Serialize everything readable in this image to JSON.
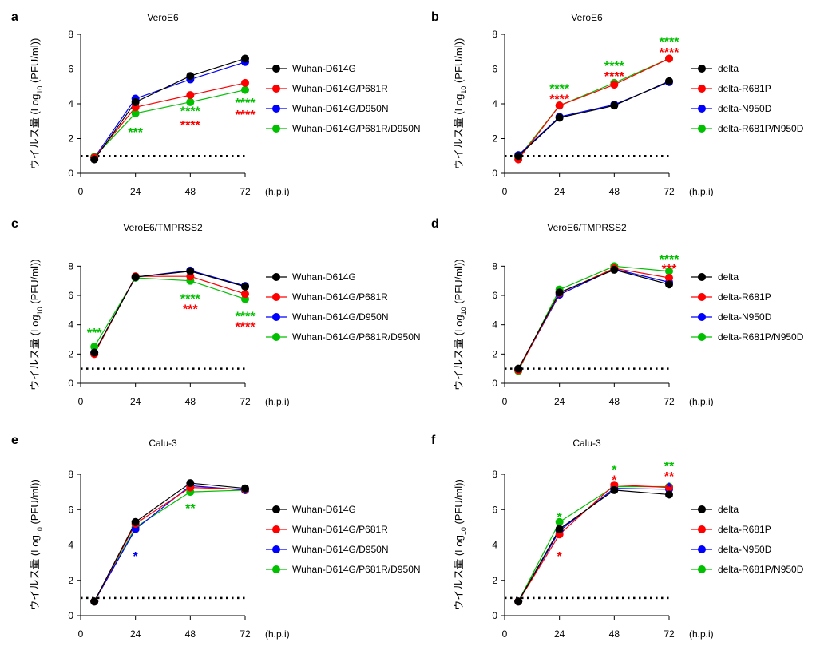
{
  "colors": {
    "black": "#000000",
    "red": "#ff0000",
    "blue": "#0000ff",
    "green": "#00c000"
  },
  "ylabel": "ウイルス量",
  "ylabel_unit_pre": "(Log",
  "ylabel_unit_sub": "10",
  "ylabel_unit_post": " (PFU/ml))",
  "chart_data": [
    {
      "panel": "a",
      "type": "line",
      "title": "VeroE6",
      "x": [
        6,
        24,
        48,
        72
      ],
      "xticks": [
        0,
        24,
        48,
        72
      ],
      "xunit": "(h.p.i)",
      "ylim": [
        0,
        8
      ],
      "yticks": [
        0,
        2,
        4,
        6,
        8
      ],
      "detection_limit": 1,
      "series": [
        {
          "name": "Wuhan-D614G",
          "color": "black",
          "values": [
            0.8,
            4.1,
            5.6,
            6.6
          ]
        },
        {
          "name": "Wuhan-D614G/P681R",
          "color": "red",
          "values": [
            0.9,
            3.8,
            4.5,
            5.2
          ]
        },
        {
          "name": "Wuhan-D614G/D950N",
          "color": "blue",
          "values": [
            0.9,
            4.3,
            5.4,
            6.4
          ]
        },
        {
          "name": "Wuhan-D614G/P681R/D950N",
          "color": "green",
          "values": [
            0.95,
            3.45,
            4.1,
            4.8
          ]
        }
      ],
      "annotations": [
        {
          "x": 24,
          "y": 2.4,
          "text": "***",
          "color": "green"
        },
        {
          "x": 48,
          "y": 3.6,
          "text": "****",
          "color": "green"
        },
        {
          "x": 48,
          "y": 2.8,
          "text": "****",
          "color": "red"
        },
        {
          "x": 72,
          "y": 4.1,
          "text": "****",
          "color": "green"
        },
        {
          "x": 72,
          "y": 3.4,
          "text": "****",
          "color": "red"
        }
      ]
    },
    {
      "panel": "b",
      "type": "line",
      "title": "VeroE6",
      "x": [
        6,
        24,
        48,
        72
      ],
      "xticks": [
        0,
        24,
        48,
        72
      ],
      "xunit": "(h.p.i)",
      "ylim": [
        0,
        8
      ],
      "yticks": [
        0,
        2,
        4,
        6,
        8
      ],
      "detection_limit": 1,
      "series": [
        {
          "name": "delta",
          "color": "black",
          "values": [
            1.0,
            3.2,
            3.9,
            5.3
          ]
        },
        {
          "name": "delta-R681P",
          "color": "red",
          "values": [
            0.8,
            3.9,
            5.1,
            6.6
          ]
        },
        {
          "name": "delta-N950D",
          "color": "blue",
          "values": [
            1.05,
            3.25,
            3.95,
            5.25
          ]
        },
        {
          "name": "delta-R681P/N950D",
          "color": "green",
          "values": [
            0.9,
            3.9,
            5.2,
            6.6
          ]
        }
      ],
      "annotations": [
        {
          "x": 24,
          "y": 4.9,
          "text": "****",
          "color": "green"
        },
        {
          "x": 24,
          "y": 4.3,
          "text": "****",
          "color": "red"
        },
        {
          "x": 48,
          "y": 6.2,
          "text": "****",
          "color": "green"
        },
        {
          "x": 48,
          "y": 5.6,
          "text": "****",
          "color": "red"
        },
        {
          "x": 72,
          "y": 7.6,
          "text": "****",
          "color": "green"
        },
        {
          "x": 72,
          "y": 7.0,
          "text": "****",
          "color": "red"
        }
      ]
    },
    {
      "panel": "c",
      "type": "line",
      "title": "VeroE6/TMPRSS2",
      "x": [
        6,
        24,
        48,
        72
      ],
      "xticks": [
        0,
        24,
        48,
        72
      ],
      "xunit": "(h.p.i)",
      "ylim": [
        0,
        9
      ],
      "yticks": [
        0,
        2,
        4,
        6,
        8
      ],
      "detection_limit": 1,
      "series": [
        {
          "name": "Wuhan-D614G",
          "color": "black",
          "values": [
            2.1,
            7.25,
            7.65,
            6.6
          ]
        },
        {
          "name": "Wuhan-D614G/P681R",
          "color": "red",
          "values": [
            2.0,
            7.3,
            7.3,
            6.1
          ]
        },
        {
          "name": "Wuhan-D614G/D950N",
          "color": "blue",
          "values": [
            2.1,
            7.25,
            7.7,
            6.65
          ]
        },
        {
          "name": "Wuhan-D614G/P681R/D950N",
          "color": "green",
          "values": [
            2.5,
            7.2,
            7.0,
            5.75
          ]
        }
      ],
      "annotations": [
        {
          "x": 6,
          "y": 3.5,
          "text": "***",
          "color": "green"
        },
        {
          "x": 48,
          "y": 5.8,
          "text": "****",
          "color": "green"
        },
        {
          "x": 48,
          "y": 5.1,
          "text": "***",
          "color": "red"
        },
        {
          "x": 72,
          "y": 4.6,
          "text": "****",
          "color": "green"
        },
        {
          "x": 72,
          "y": 3.9,
          "text": "****",
          "color": "red"
        }
      ]
    },
    {
      "panel": "d",
      "type": "line",
      "title": "VeroE6/TMPRSS2",
      "x": [
        6,
        24,
        48,
        72
      ],
      "xticks": [
        0,
        24,
        48,
        72
      ],
      "xunit": "(h.p.i)",
      "ylim": [
        0,
        9
      ],
      "yticks": [
        0,
        2,
        4,
        6,
        8
      ],
      "detection_limit": 1,
      "series": [
        {
          "name": "delta",
          "color": "black",
          "values": [
            1.0,
            6.2,
            7.75,
            6.75
          ]
        },
        {
          "name": "delta-R681P",
          "color": "red",
          "values": [
            0.9,
            6.15,
            7.85,
            7.2
          ]
        },
        {
          "name": "delta-N950D",
          "color": "blue",
          "values": [
            0.95,
            6.05,
            7.8,
            6.9
          ]
        },
        {
          "name": "delta-R681P/N950D",
          "color": "green",
          "values": [
            0.85,
            6.4,
            8.0,
            7.65
          ]
        }
      ],
      "annotations": [
        {
          "x": 72,
          "y": 8.5,
          "text": "****",
          "color": "green"
        },
        {
          "x": 72,
          "y": 7.85,
          "text": "***",
          "color": "red"
        }
      ]
    },
    {
      "panel": "e",
      "type": "line",
      "title": "Calu-3",
      "x": [
        6,
        24,
        48,
        72
      ],
      "xticks": [
        0,
        24,
        48,
        72
      ],
      "xunit": "(h.p.i)",
      "ylim": [
        0,
        8
      ],
      "yticks": [
        0,
        2,
        4,
        6,
        8
      ],
      "detection_limit": 1,
      "series": [
        {
          "name": "Wuhan-D614G",
          "color": "black",
          "values": [
            0.8,
            5.3,
            7.5,
            7.2
          ]
        },
        {
          "name": "Wuhan-D614G/P681R",
          "color": "red",
          "values": [
            0.8,
            5.2,
            7.25,
            7.15
          ]
        },
        {
          "name": "Wuhan-D614G/D950N",
          "color": "blue",
          "values": [
            0.8,
            4.9,
            7.35,
            7.1
          ]
        },
        {
          "name": "Wuhan-D614G/P681R/D950N",
          "color": "green",
          "values": [
            0.8,
            5.0,
            7.0,
            7.1
          ]
        }
      ],
      "annotations": [
        {
          "x": 24,
          "y": 3.4,
          "text": "*",
          "color": "blue"
        },
        {
          "x": 48,
          "y": 6.1,
          "text": "**",
          "color": "green"
        }
      ]
    },
    {
      "panel": "f",
      "type": "line",
      "title": "Calu-3",
      "x": [
        6,
        24,
        48,
        72
      ],
      "xticks": [
        0,
        24,
        48,
        72
      ],
      "xunit": "(h.p.i)",
      "ylim": [
        0,
        8
      ],
      "yticks": [
        0,
        2,
        4,
        6,
        8
      ],
      "detection_limit": 1,
      "series": [
        {
          "name": "delta",
          "color": "black",
          "values": [
            0.8,
            4.9,
            7.1,
            6.85
          ]
        },
        {
          "name": "delta-R681P",
          "color": "red",
          "values": [
            0.8,
            4.6,
            7.4,
            7.25
          ]
        },
        {
          "name": "delta-N950D",
          "color": "blue",
          "values": [
            0.8,
            4.8,
            7.2,
            7.15
          ]
        },
        {
          "name": "delta-R681P/N950D",
          "color": "green",
          "values": [
            0.8,
            5.3,
            7.3,
            7.3
          ]
        }
      ],
      "annotations": [
        {
          "x": 24,
          "y": 5.6,
          "text": "*",
          "color": "green"
        },
        {
          "x": 24,
          "y": 3.4,
          "text": "*",
          "color": "red"
        },
        {
          "x": 48,
          "y": 8.3,
          "text": "*",
          "color": "green"
        },
        {
          "x": 48,
          "y": 7.7,
          "text": "*",
          "color": "red"
        },
        {
          "x": 72,
          "y": 8.5,
          "text": "**",
          "color": "green"
        },
        {
          "x": 72,
          "y": 7.9,
          "text": "**",
          "color": "red"
        },
        {
          "x": 72,
          "y": 7.3,
          "text": "*",
          "color": "blue"
        }
      ]
    }
  ]
}
